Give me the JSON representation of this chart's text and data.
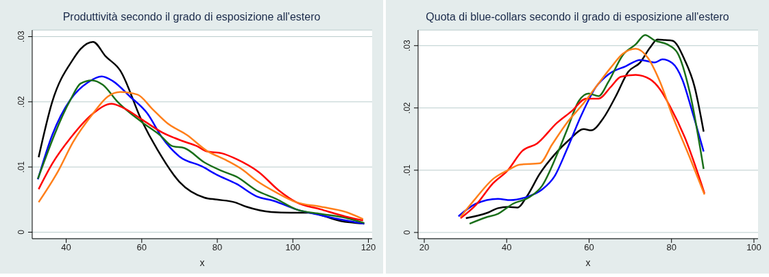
{
  "chart_data": [
    {
      "type": "line",
      "title": "Produttività secondo il grado di esposizione all'estero",
      "xlabel": "x",
      "xlim": [
        31,
        121
      ],
      "xticks": [
        40,
        60,
        80,
        100,
        120
      ],
      "ylim": [
        -0.001,
        0.031
      ],
      "yticks": [
        {
          "value": 0,
          "label": "0"
        },
        {
          "value": 0.01,
          "label": ".01"
        },
        {
          "value": 0.02,
          "label": ".02"
        },
        {
          "value": 0.03,
          "label": ".03"
        }
      ],
      "grid": "y",
      "marker": "none",
      "line_style": "solid",
      "series": [
        {
          "color": "#000000",
          "x": [
            32.7,
            36.3,
            41.8,
            43.8,
            47.1,
            50.4,
            54.3,
            60,
            64.1,
            70,
            76.6,
            79.9,
            84.5,
            87.7,
            94.3,
            99.5,
            104.1,
            112.7,
            118.9
          ],
          "values": [
            0.0115,
            0.02,
            0.0265,
            0.0281,
            0.0292,
            0.027,
            0.0248,
            0.0171,
            0.0127,
            0.0077,
            0.0053,
            0.005,
            0.0046,
            0.0039,
            0.0031,
            0.003,
            0.003,
            0.0017,
            0.0013
          ]
        },
        {
          "color": "#0000ff",
          "x": [
            32.5,
            36.3,
            41.2,
            45.8,
            49.4,
            52.3,
            56.9,
            61.5,
            65.4,
            70,
            75.9,
            79.9,
            85.1,
            90.4,
            95,
            100.9,
            107.4,
            114,
            118.9
          ],
          "values": [
            0.0081,
            0.0149,
            0.0204,
            0.023,
            0.0239,
            0.0232,
            0.0208,
            0.0182,
            0.0145,
            0.0116,
            0.0101,
            0.0088,
            0.0074,
            0.0055,
            0.0048,
            0.0035,
            0.0026,
            0.0018,
            0.0013
          ]
        },
        {
          "color": "#1a6f1a",
          "x": [
            32.5,
            41.2,
            43.8,
            46.8,
            49.7,
            53.6,
            60,
            64.8,
            68.1,
            71.3,
            76.6,
            81.2,
            85.1,
            90.4,
            95.6,
            100.9,
            107.4,
            114,
            118.9
          ],
          "values": [
            0.0082,
            0.0204,
            0.0228,
            0.0233,
            0.0226,
            0.02,
            0.0169,
            0.0149,
            0.0132,
            0.0129,
            0.0107,
            0.0094,
            0.0085,
            0.0064,
            0.0051,
            0.0035,
            0.0028,
            0.0022,
            0.0014
          ]
        },
        {
          "color": "#ff0000",
          "x": [
            32.7,
            36.3,
            41.2,
            47.1,
            52,
            55,
            60,
            65.4,
            70.7,
            74.6,
            77.2,
            81.2,
            85.1,
            91,
            96.3,
            100.9,
            107.4,
            114,
            118.6
          ],
          "values": [
            0.0066,
            0.0105,
            0.0145,
            0.0182,
            0.0197,
            0.0191,
            0.0173,
            0.0153,
            0.014,
            0.0132,
            0.0124,
            0.0121,
            0.0112,
            0.0092,
            0.0064,
            0.0046,
            0.0035,
            0.0024,
            0.0018
          ]
        },
        {
          "color": "#ff7f1a",
          "x": [
            32.7,
            37.9,
            41.8,
            47.1,
            51,
            54.3,
            58.9,
            62.8,
            66.8,
            72,
            77.2,
            82.5,
            86.4,
            90.4,
            95.6,
            100.9,
            107.4,
            114,
            118.6
          ],
          "values": [
            0.0046,
            0.0094,
            0.0138,
            0.0182,
            0.0208,
            0.0215,
            0.0211,
            0.0189,
            0.0167,
            0.0149,
            0.0125,
            0.011,
            0.0097,
            0.0079,
            0.0061,
            0.0046,
            0.0039,
            0.0031,
            0.002
          ]
        }
      ]
    },
    {
      "type": "line",
      "title": "Quota di blue-collars secondo il grado di esposizione all'estero",
      "xlabel": "x",
      "xlim": [
        18.5,
        101
      ],
      "xticks": [
        20,
        40,
        60,
        80,
        100
      ],
      "ylim": [
        -0.001,
        0.0325
      ],
      "yticks": [
        {
          "value": 0,
          "label": "0"
        },
        {
          "value": 0.01,
          "label": ".01"
        },
        {
          "value": 0.02,
          "label": ".02"
        },
        {
          "value": 0.03,
          "label": ".03"
        }
      ],
      "grid": "y",
      "marker": "none",
      "line_style": "solid",
      "series": [
        {
          "color": "#000000",
          "x": [
            30.1,
            35.5,
            37.9,
            40.3,
            42.6,
            45,
            48,
            51.6,
            55.2,
            58.7,
            60.5,
            63.5,
            66.5,
            69.5,
            72.4,
            74.8,
            76.6,
            78.4,
            80.2,
            83.2,
            85.6,
            87.8
          ],
          "values": [
            0.0023,
            0.0032,
            0.0039,
            0.0041,
            0.004,
            0.0059,
            0.0094,
            0.0125,
            0.0149,
            0.0166,
            0.0164,
            0.0184,
            0.0219,
            0.0258,
            0.0273,
            0.0297,
            0.031,
            0.0309,
            0.0308,
            0.0277,
            0.0234,
            0.0162
          ]
        },
        {
          "color": "#0000ff",
          "x": [
            28.3,
            32.5,
            37.9,
            40.9,
            44.4,
            48.6,
            51.6,
            54.6,
            58.1,
            61.7,
            64.7,
            68.9,
            72.4,
            76,
            77.8,
            80.2,
            82.6,
            85,
            87.8
          ],
          "values": [
            0.0026,
            0.0046,
            0.0054,
            0.0052,
            0.0056,
            0.0069,
            0.009,
            0.0133,
            0.0188,
            0.0234,
            0.0254,
            0.0267,
            0.0277,
            0.0273,
            0.0278,
            0.0272,
            0.0246,
            0.0195,
            0.013
          ]
        },
        {
          "color": "#1a6f1a",
          "x": [
            31,
            34.9,
            37.9,
            41.5,
            45.6,
            48.6,
            52.2,
            54.6,
            57.5,
            59.9,
            62.3,
            64.7,
            68.2,
            71.3,
            73.6,
            76,
            79,
            81.4,
            84.4,
            87.8
          ],
          "values": [
            0.0014,
            0.0024,
            0.003,
            0.0046,
            0.0057,
            0.0075,
            0.0125,
            0.0164,
            0.0211,
            0.0223,
            0.0219,
            0.0242,
            0.0285,
            0.0302,
            0.0317,
            0.0308,
            0.0302,
            0.0289,
            0.0226,
            0.0102
          ]
        },
        {
          "color": "#ff0000",
          "x": [
            28.8,
            32.5,
            36.7,
            40.3,
            43.8,
            47.4,
            52.2,
            55.8,
            59.3,
            62.3,
            65.3,
            67.7,
            71.3,
            74.8,
            77.2,
            79.6,
            83.2,
            88
          ],
          "values": [
            0.0023,
            0.0044,
            0.0079,
            0.01,
            0.0131,
            0.0143,
            0.0176,
            0.0195,
            0.0215,
            0.0215,
            0.0234,
            0.025,
            0.0253,
            0.0246,
            0.023,
            0.0203,
            0.0153,
            0.0063
          ]
        },
        {
          "color": "#ff7f1a",
          "x": [
            28.8,
            32.5,
            36.7,
            40.3,
            43.2,
            48,
            51,
            54.6,
            58.1,
            61.7,
            65.3,
            68.2,
            71.3,
            74.2,
            77.2,
            80.2,
            84.4,
            88
          ],
          "values": [
            0.0025,
            0.0055,
            0.0086,
            0.01,
            0.0109,
            0.0111,
            0.0141,
            0.0176,
            0.0203,
            0.0234,
            0.0265,
            0.0287,
            0.0295,
            0.0281,
            0.0242,
            0.0188,
            0.0121,
            0.0061
          ]
        }
      ]
    }
  ]
}
